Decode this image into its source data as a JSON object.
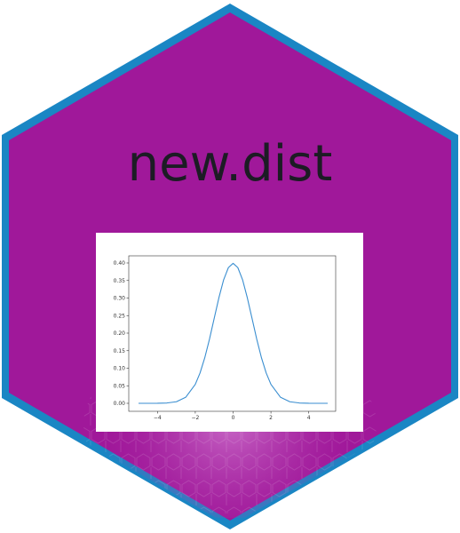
{
  "sticker": {
    "title": "new.dist",
    "colors": {
      "fill": "#a0189a",
      "border": "#1a86c4",
      "title": "#1c1c24",
      "curve": "#3a8ed0"
    }
  },
  "chart_data": {
    "type": "line",
    "title": "",
    "xlabel": "",
    "ylabel": "",
    "xlim": [
      -5,
      5
    ],
    "ylim": [
      0,
      0.4
    ],
    "grid": false,
    "x_ticks": [
      "−4",
      "−2",
      "0",
      "2",
      "4"
    ],
    "x_tick_values": [
      -4,
      -2,
      0,
      2,
      4
    ],
    "y_ticks": [
      "0.00",
      "0.05",
      "0.10",
      "0.15",
      "0.20",
      "0.25",
      "0.30",
      "0.35",
      "0.40"
    ],
    "y_tick_values": [
      0,
      0.05,
      0.1,
      0.15,
      0.2,
      0.25,
      0.3,
      0.35,
      0.4
    ],
    "series": [
      {
        "x": [
          -5,
          -4.5,
          -4,
          -3.5,
          -3,
          -2.5,
          -2,
          -1.75,
          -1.5,
          -1.25,
          -1,
          -0.75,
          -0.5,
          -0.25,
          0,
          0.25,
          0.5,
          0.75,
          1,
          1.25,
          1.5,
          1.75,
          2,
          2.5,
          3,
          3.5,
          4,
          4.5,
          5
        ],
        "y": [
          0.0,
          0.0,
          0.0001,
          0.0009,
          0.0044,
          0.0175,
          0.054,
          0.0863,
          0.1295,
          0.1826,
          0.242,
          0.3011,
          0.3521,
          0.3867,
          0.3989,
          0.3867,
          0.3521,
          0.3011,
          0.242,
          0.1826,
          0.1295,
          0.0863,
          0.054,
          0.0175,
          0.0044,
          0.0009,
          0.0001,
          0.0,
          0.0
        ]
      }
    ]
  }
}
